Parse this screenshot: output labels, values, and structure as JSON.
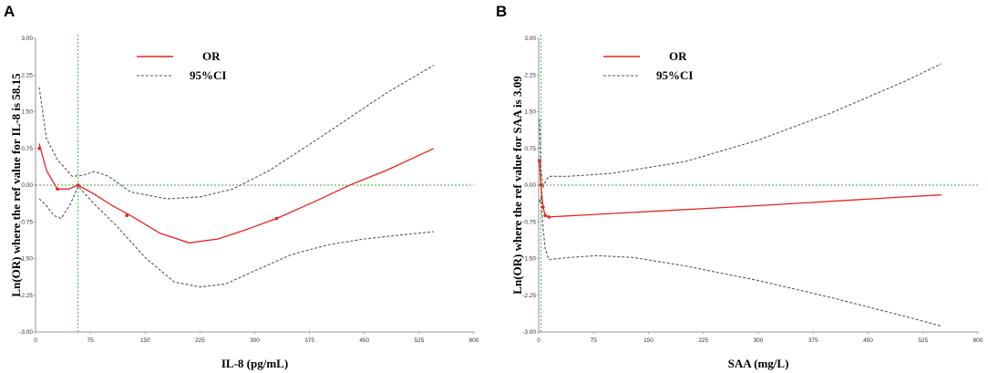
{
  "chart_data": [
    {
      "panel": "A",
      "type": "line",
      "xlabel": "IL-8 (pg/mL)",
      "ylabel": "Ln(OR) where the ref value for IL-8 is 58.15",
      "xlim": [
        0,
        600
      ],
      "ylim": [
        -3,
        3
      ],
      "xticks": [
        "0",
        "75",
        "150",
        "225",
        "300",
        "375",
        "450",
        "525",
        "600"
      ],
      "yticks": [
        "3.00",
        "2.25",
        "1.50",
        "0.75",
        "0.00",
        "-0.75",
        "-1.50",
        "-2.25",
        "-3.00"
      ],
      "ref_x": 58.15,
      "ref_y": 0,
      "legend": [
        "OR",
        "95%CI"
      ],
      "series": [
        {
          "name": "OR",
          "color": "#e8231f",
          "style": "solid",
          "x": [
            5,
            15,
            30,
            45,
            58.15,
            80,
            105,
            130,
            170,
            210,
            250,
            290,
            330,
            380,
            430,
            480,
            545
          ],
          "y": [
            0.85,
            0.3,
            -0.08,
            -0.08,
            0.0,
            -0.18,
            -0.42,
            -0.62,
            -0.98,
            -1.18,
            -1.1,
            -0.9,
            -0.68,
            -0.35,
            0.0,
            0.3,
            0.75
          ]
        },
        {
          "name": "95%CI upper",
          "color": "#555555",
          "style": "dashed",
          "x": [
            5,
            15,
            30,
            50,
            65,
            80,
            100,
            130,
            180,
            225,
            270,
            320,
            380,
            430,
            480,
            545
          ],
          "y": [
            2.0,
            0.95,
            0.52,
            0.18,
            0.2,
            0.28,
            0.18,
            -0.14,
            -0.28,
            -0.24,
            -0.08,
            0.3,
            0.88,
            1.38,
            1.88,
            2.45
          ]
        },
        {
          "name": "95%CI lower",
          "color": "#555555",
          "style": "dashed",
          "x": [
            5,
            15,
            25,
            35,
            48,
            58.15,
            80,
            110,
            150,
            190,
            225,
            260,
            300,
            350,
            400,
            450,
            500,
            545
          ],
          "y": [
            -0.28,
            -0.42,
            -0.62,
            -0.68,
            -0.38,
            -0.02,
            -0.38,
            -0.82,
            -1.48,
            -1.98,
            -2.08,
            -2.02,
            -1.75,
            -1.42,
            -1.22,
            -1.1,
            -1.02,
            -0.95
          ]
        }
      ],
      "markers": [
        {
          "x": 5,
          "y": 0.75
        },
        {
          "x": 30,
          "y": -0.08
        },
        {
          "x": 58.15,
          "y": 0.0
        },
        {
          "x": 125,
          "y": -0.62
        },
        {
          "x": 330,
          "y": -0.68
        }
      ]
    },
    {
      "panel": "B",
      "type": "line",
      "xlabel": "SAA (mg/L)",
      "ylabel": "Ln(OR) where the ref value for SAA is 3.09",
      "xlim": [
        0,
        600
      ],
      "ylim": [
        -3,
        3
      ],
      "xticks": [
        "0",
        "75",
        "150",
        "225",
        "300",
        "375",
        "450",
        "525",
        "600"
      ],
      "yticks": [
        "3.00",
        "2.25",
        "1.50",
        "0.75",
        "0.00",
        "-0.75",
        "-1.50",
        "-2.25",
        "-3.00"
      ],
      "ref_x": 3.09,
      "ref_y": 0,
      "legend": [
        "OR",
        "95%CI"
      ],
      "series": [
        {
          "name": "OR",
          "color": "#e8231f",
          "style": "solid",
          "x": [
            1,
            3.09,
            6,
            9,
            14,
            100,
            200,
            300,
            400,
            500,
            550
          ],
          "y": [
            0.5,
            0.0,
            -0.45,
            -0.62,
            -0.65,
            -0.58,
            -0.5,
            -0.42,
            -0.33,
            -0.24,
            -0.2
          ]
        },
        {
          "name": "95%CI upper",
          "color": "#555555",
          "style": "dashed",
          "x": [
            1,
            3.09,
            6,
            10,
            14,
            40,
            100,
            200,
            300,
            400,
            500,
            550
          ],
          "y": [
            1.35,
            0.35,
            -0.05,
            0.1,
            0.18,
            0.18,
            0.24,
            0.48,
            0.92,
            1.48,
            2.12,
            2.48
          ]
        },
        {
          "name": "95%CI lower",
          "color": "#555555",
          "style": "dashed",
          "x": [
            1,
            3.09,
            6,
            9,
            14,
            40,
            80,
            130,
            200,
            300,
            400,
            500,
            550
          ],
          "y": [
            -0.35,
            -0.25,
            -0.85,
            -1.3,
            -1.52,
            -1.48,
            -1.44,
            -1.48,
            -1.65,
            -1.95,
            -2.3,
            -2.68,
            -2.88
          ]
        }
      ],
      "markers": [
        {
          "x": 1,
          "y": 0.5
        },
        {
          "x": 3.09,
          "y": 0.0
        },
        {
          "x": 6,
          "y": -0.45
        },
        {
          "x": 9,
          "y": -0.62
        },
        {
          "x": 14,
          "y": -0.65
        }
      ]
    }
  ]
}
